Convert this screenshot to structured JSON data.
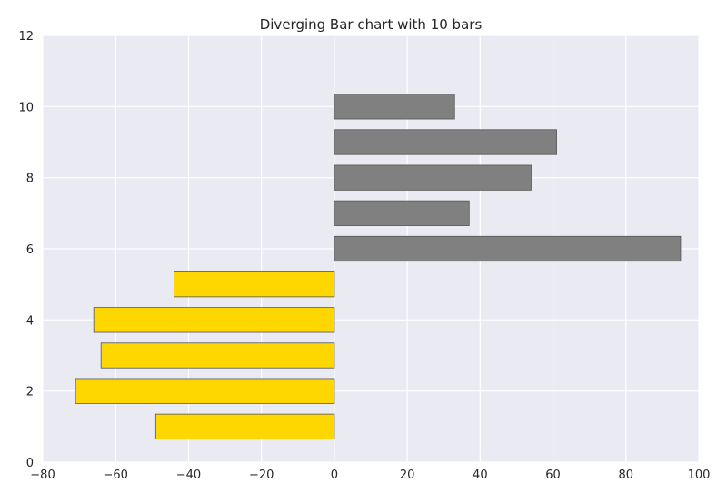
{
  "chart_data": {
    "type": "bar",
    "orientation": "horizontal",
    "title": "Diverging Bar chart with 10 bars",
    "xlabel": "",
    "ylabel": "",
    "xlim": [
      -80,
      100
    ],
    "ylim": [
      0,
      12
    ],
    "x_ticks": [
      -80,
      -60,
      -40,
      -20,
      0,
      20,
      40,
      60,
      80,
      100
    ],
    "y_ticks": [
      0,
      2,
      4,
      6,
      8,
      10,
      12
    ],
    "grid": true,
    "legend": "none",
    "bar_height": 0.7,
    "bars": [
      {
        "y": 1,
        "value": -49
      },
      {
        "y": 2,
        "value": -71
      },
      {
        "y": 3,
        "value": -64
      },
      {
        "y": 4,
        "value": -66
      },
      {
        "y": 5,
        "value": -44
      },
      {
        "y": 6,
        "value": 95
      },
      {
        "y": 7,
        "value": 37
      },
      {
        "y": 8,
        "value": 54
      },
      {
        "y": 9,
        "value": 61
      },
      {
        "y": 10,
        "value": 33
      }
    ],
    "colors": {
      "negative": "#ffd700",
      "positive": "#808080",
      "background": "#eaeaf2",
      "grid": "#ffffff",
      "edge": "#555555"
    }
  }
}
